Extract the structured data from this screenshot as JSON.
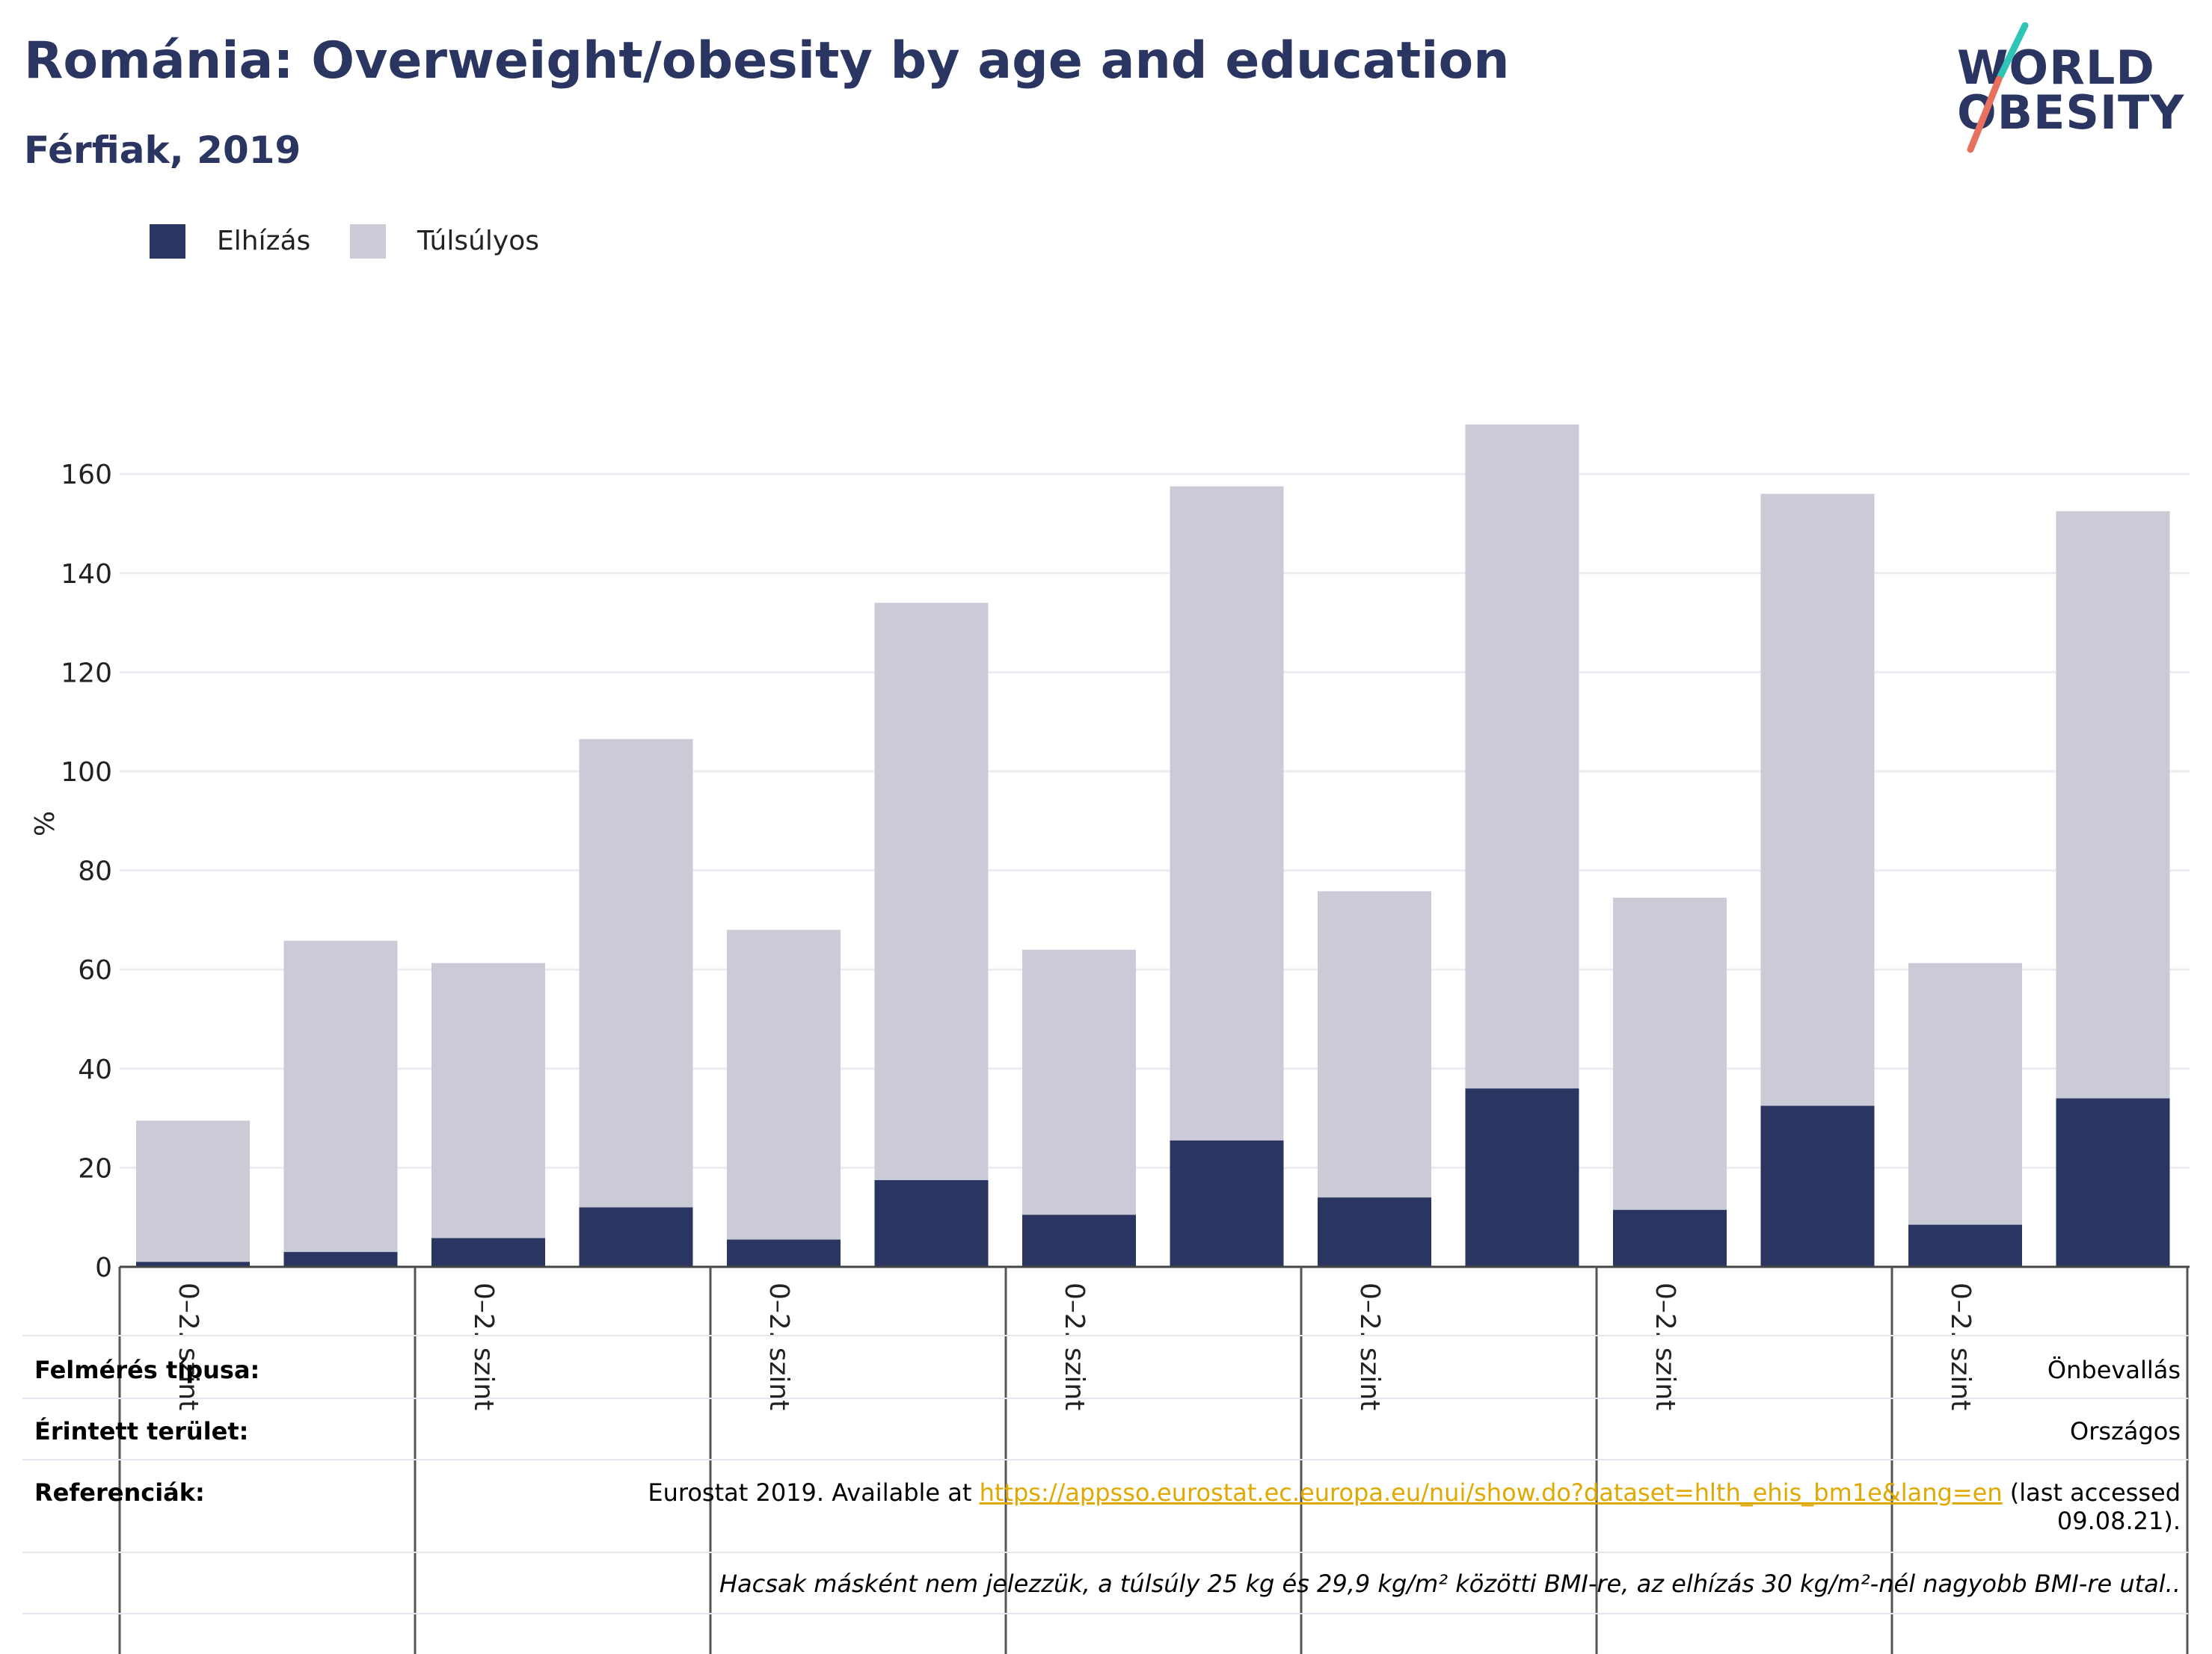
{
  "title": "Románia: Overweight/obesity by age and education",
  "subtitle": "Férfiak, 2019",
  "logo": {
    "line1": "WORLD",
    "line2": "OBESITY"
  },
  "colors": {
    "obesity": "#2a3561",
    "overweight": "#cacbd7",
    "title": "#2a3561",
    "logo_teal": "#2ec4b6",
    "logo_coral": "#e8705f",
    "link": "#e0a800",
    "grid": "#ececf2"
  },
  "chart_data": {
    "type": "bar",
    "stacked": true,
    "ylabel": "%",
    "ylim": [
      0,
      175
    ],
    "yticks": [
      0,
      20,
      40,
      60,
      80,
      100,
      120,
      140,
      160
    ],
    "grid": true,
    "legend_position": "top-left",
    "categories": [
      "",
      "",
      "",
      "",
      "",
      "",
      "",
      "",
      "",
      "",
      "",
      "",
      "",
      ""
    ],
    "group_labels": [
      "0–2. szint",
      "0–2. szint",
      "0–2. szint",
      "0–2. szint",
      "0–2. szint",
      "0–2. szint",
      "0–2. szint"
    ],
    "series": [
      {
        "name": "Elhízás",
        "color": "#2a3561",
        "values": [
          1,
          3,
          5.8,
          12,
          5.5,
          17.5,
          10.5,
          25.5,
          14,
          36,
          11.5,
          32.5,
          8.5,
          34
        ]
      },
      {
        "name": "Túlsúlyos",
        "color": "#cacbd7",
        "values": [
          28.5,
          62.8,
          55.5,
          94.5,
          62.5,
          116.5,
          53.5,
          132,
          61.8,
          134,
          63,
          123.5,
          52.8,
          118.5
        ]
      }
    ]
  },
  "footer": {
    "survey_label": "Felmérés típusa:",
    "survey_value": "Önbevallás",
    "area_label": "Érintett terület:",
    "area_value": "Országos",
    "ref_label": "Referenciák:",
    "ref_prefix": "Eurostat 2019. Available at ",
    "ref_link": "https://appsso.eurostat.ec.europa.eu/nui/show.do?dataset=hlth_ehis_bm1e&lang=en",
    "ref_suffix": " (last accessed",
    "ref_line2": "09.08.21).",
    "note": "Hacsak másként nem jelezzük, a túlsúly 25 kg és 29,9 kg/m² közötti BMI-re, az elhízás 30 kg/m²-nél nagyobb BMI-re utal.."
  }
}
